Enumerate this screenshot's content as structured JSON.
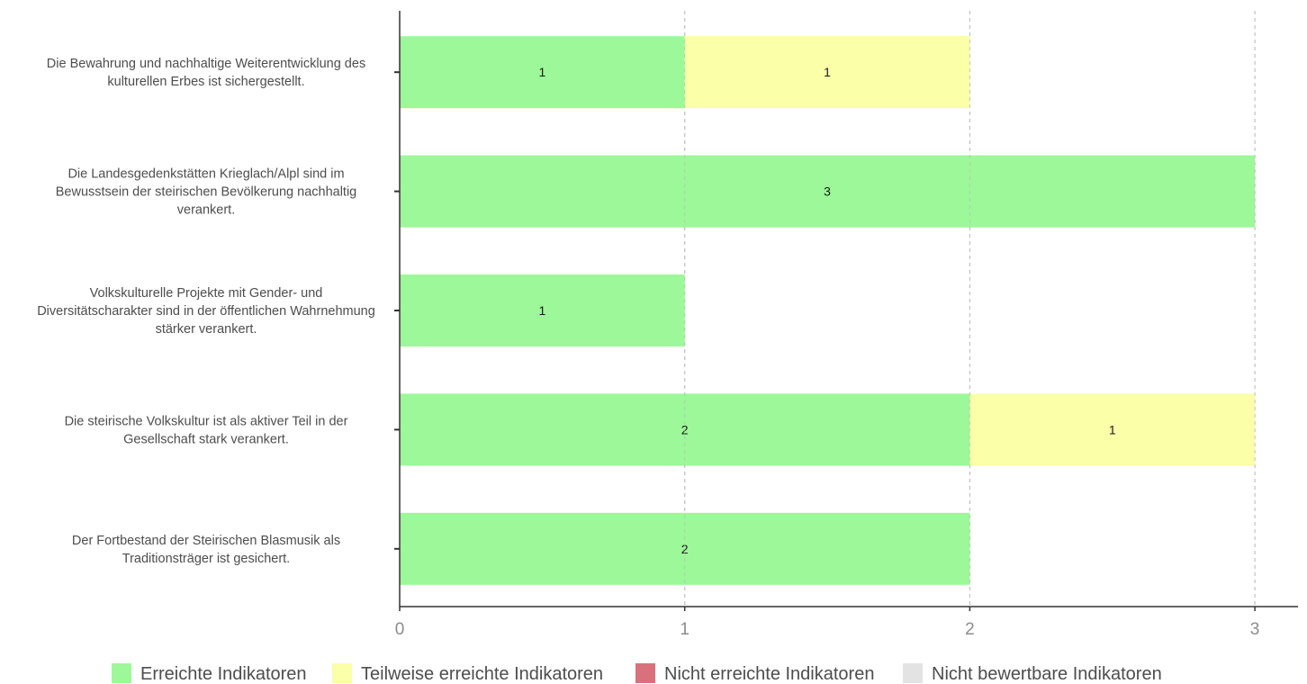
{
  "chart_data": {
    "type": "bar",
    "orientation": "horizontal",
    "stacked": true,
    "categories": [
      [
        "Die Bewahrung und nachhaltige Weiterentwicklung des",
        "kulturellen Erbes ist sichergestellt."
      ],
      [
        "Die Landesgedenkstätten Krieglach/Alpl sind im",
        "Bewusstsein der steirischen Bevölkerung nachhaltig",
        "verankert."
      ],
      [
        "Volkskulturelle Projekte mit Gender- und",
        "Diversitätscharakter sind in der öffentlichen Wahrnehmung",
        "stärker verankert."
      ],
      [
        "Die steirische Volkskultur ist als aktiver Teil in der",
        "Gesellschaft stark verankert."
      ],
      [
        "Der Fortbestand der Steirischen Blasmusik als",
        "Traditionsträger ist gesichert."
      ]
    ],
    "series": [
      {
        "name": "Erreichte Indikatoren",
        "color": "#9cf898",
        "values": [
          1,
          3,
          1,
          2,
          2
        ]
      },
      {
        "name": "Teilweise erreichte Indikatoren",
        "color": "#faffa8",
        "values": [
          1,
          0,
          0,
          1,
          0
        ]
      },
      {
        "name": "Nicht erreichte Indikatoren",
        "color": "#d9717d",
        "values": [
          0,
          0,
          0,
          0,
          0
        ]
      },
      {
        "name": "Nicht bewertbare Indikatoren",
        "color": "#e3e3e3",
        "values": [
          0,
          0,
          0,
          0,
          0
        ]
      }
    ],
    "xlim": [
      0,
      3.15
    ],
    "xticks": [
      0,
      1,
      2,
      3
    ],
    "grid": "vertical-dashed",
    "legend_position": "bottom"
  }
}
